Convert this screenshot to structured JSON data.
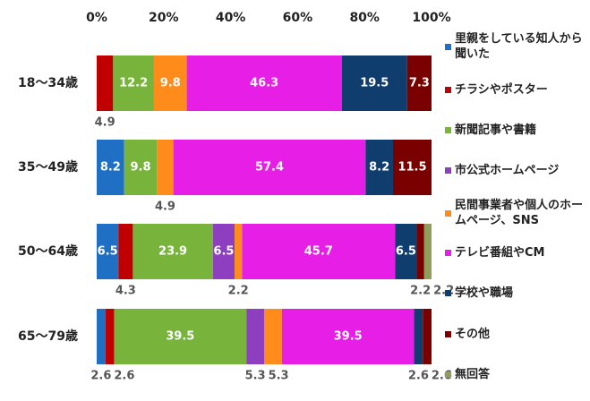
{
  "chart_data": {
    "type": "stacked_bar_horizontal",
    "categories": [
      "18〜34歳",
      "35〜49歳",
      "50〜64歳",
      "65〜79歳"
    ],
    "series": [
      {
        "name": "里親をしている知人から聞いた",
        "color": "#1f6fc5",
        "values": [
          0,
          8.2,
          6.5,
          2.6
        ]
      },
      {
        "name": "チラシやポスター",
        "color": "#c00000",
        "values": [
          4.9,
          0,
          4.3,
          2.6
        ]
      },
      {
        "name": "新聞記事や書籍",
        "color": "#78b43c",
        "values": [
          12.2,
          9.8,
          23.9,
          39.5
        ]
      },
      {
        "name": "市公式ホームページ",
        "color": "#8e3fbf",
        "values": [
          0,
          0,
          6.5,
          5.3
        ]
      },
      {
        "name": "民間事業者や個人のホームページ、SNS",
        "color": "#ff8c1a",
        "values": [
          9.8,
          4.9,
          2.2,
          5.3
        ]
      },
      {
        "name": "テレビ番組やCM",
        "color": "#e61ee6",
        "values": [
          46.3,
          57.4,
          45.7,
          39.5
        ]
      },
      {
        "name": "学校や職場",
        "color": "#0f3d6e",
        "values": [
          19.5,
          8.2,
          6.5,
          2.6
        ]
      },
      {
        "name": "その他",
        "color": "#7a0000",
        "values": [
          7.3,
          11.5,
          2.2,
          2.6
        ]
      },
      {
        "name": "無回答",
        "color": "#8f9e5a",
        "values": [
          0,
          0,
          2.2,
          0
        ]
      }
    ],
    "xlim": [
      0,
      100
    ],
    "xticks": [
      {
        "value": 0,
        "label": "0%"
      },
      {
        "value": 20,
        "label": "20%"
      },
      {
        "value": 40,
        "label": "40%"
      },
      {
        "value": 60,
        "label": "60%"
      },
      {
        "value": 80,
        "label": "80%"
      },
      {
        "value": 100,
        "label": "100%"
      }
    ]
  }
}
